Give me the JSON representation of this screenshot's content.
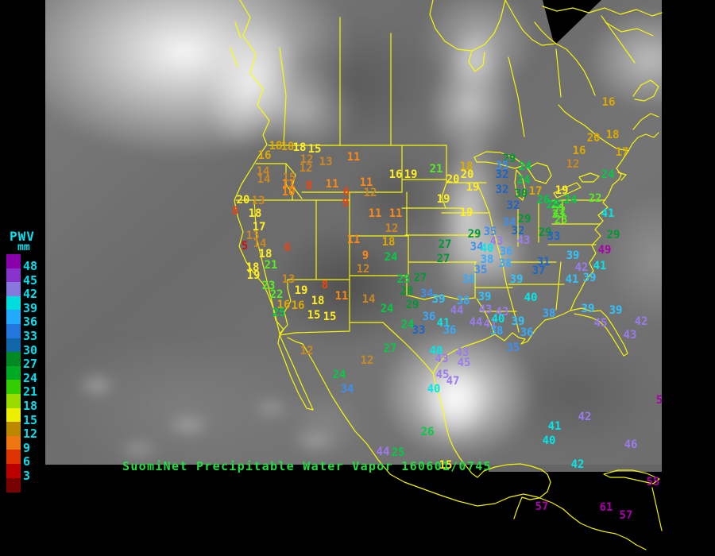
{
  "product": {
    "title": "SuomiNet Precipitable Water Vapor 160601/0745",
    "title_color": "#22dd44"
  },
  "legend": {
    "title": "PWV",
    "units": "mm",
    "label_color": "#00e0ee",
    "entries": [
      {
        "value": "48",
        "color": "#8800aa"
      },
      {
        "value": "45",
        "color": "#8833cc"
      },
      {
        "value": "42",
        "color": "#8877dd"
      },
      {
        "value": "39",
        "color": "#00dddd"
      },
      {
        "value": "36",
        "color": "#22aaff"
      },
      {
        "value": "33",
        "color": "#2277dd"
      },
      {
        "value": "30",
        "color": "#1166aa"
      },
      {
        "value": "27",
        "color": "#008822"
      },
      {
        "value": "24",
        "color": "#00aa22"
      },
      {
        "value": "21",
        "color": "#33cc00"
      },
      {
        "value": "18",
        "color": "#99dd00"
      },
      {
        "value": "15",
        "color": "#eeee00"
      },
      {
        "value": "12",
        "color": "#bb8800"
      },
      {
        "value": "9",
        "color": "#ee7711"
      },
      {
        "value": "6",
        "color": "#dd3300"
      },
      {
        "value": "3",
        "color": "#bb0000"
      }
    ],
    "extra_swatch_color": "#770000"
  },
  "map": {
    "outline_color": "#ffff00"
  },
  "stations_format": [
    "value",
    "x",
    "y",
    "color"
  ],
  "stations": [
    [
      "18",
      347,
      184,
      "#ddaa00"
    ],
    [
      "18",
      362,
      185,
      "#ddaa00"
    ],
    [
      "18",
      377,
      186,
      "#ffee22"
    ],
    [
      "15",
      396,
      188,
      "#ffee22"
    ],
    [
      "16",
      333,
      196,
      "#ddaa00"
    ],
    [
      "12",
      386,
      201,
      "#cc8822"
    ],
    [
      "12",
      385,
      212,
      "#cc8822"
    ],
    [
      "13",
      410,
      204,
      "#cc8822"
    ],
    [
      "11",
      445,
      198,
      "#ff8811"
    ],
    [
      "14",
      331,
      216,
      "#cc8822"
    ],
    [
      "15",
      364,
      224,
      "#cc8822"
    ],
    [
      "14",
      332,
      226,
      "#cc8822"
    ],
    [
      "11",
      363,
      232,
      "#ff8811"
    ],
    [
      "10",
      363,
      242,
      "#ff8811"
    ],
    [
      "8",
      389,
      234,
      "#ee4411"
    ],
    [
      "11",
      418,
      232,
      "#ff8811"
    ],
    [
      "11",
      461,
      230,
      "#ff8811"
    ],
    [
      "6",
      436,
      242,
      "#ee4411"
    ],
    [
      "9",
      435,
      256,
      "#ee4411"
    ],
    [
      "12",
      466,
      243,
      "#cc8822"
    ],
    [
      "16",
      498,
      220,
      "#ffee22"
    ],
    [
      "19",
      517,
      220,
      "#ffee22"
    ],
    [
      "11",
      472,
      269,
      "#ff8811"
    ],
    [
      "11",
      498,
      269,
      "#ff8811"
    ],
    [
      "12",
      493,
      288,
      "#cc8822"
    ],
    [
      "20",
      306,
      252,
      "#ffee22"
    ],
    [
      "13",
      325,
      253,
      "#cc8822"
    ],
    [
      "8",
      296,
      266,
      "#ee4411"
    ],
    [
      "18",
      321,
      269,
      "#ffee22"
    ],
    [
      "17",
      326,
      286,
      "#ffee22"
    ],
    [
      "13",
      318,
      297,
      "#cc8822"
    ],
    [
      "5",
      308,
      310,
      "#cc1111"
    ],
    [
      "14",
      327,
      307,
      "#cc8822"
    ],
    [
      "6",
      362,
      312,
      "#ee4411"
    ],
    [
      "18",
      334,
      320,
      "#ffee22"
    ],
    [
      "18",
      318,
      337,
      "#ffee22"
    ],
    [
      "21",
      341,
      334,
      "#55ee22"
    ],
    [
      "19",
      319,
      347,
      "#ffee22"
    ],
    [
      "13",
      363,
      352,
      "#cc8822"
    ],
    [
      "23",
      338,
      360,
      "#55ee22"
    ],
    [
      "8",
      409,
      359,
      "#ee4411"
    ],
    [
      "19",
      379,
      366,
      "#ffee22"
    ],
    [
      "22",
      348,
      371,
      "#55ee22"
    ],
    [
      "18",
      400,
      379,
      "#ffee22"
    ],
    [
      "11",
      430,
      373,
      "#ff8811"
    ],
    [
      "16",
      357,
      384,
      "#ddaa00"
    ],
    [
      "16",
      375,
      385,
      "#ddaa00"
    ],
    [
      "25",
      351,
      394,
      "#00cc44"
    ],
    [
      "15",
      395,
      397,
      "#ffee22"
    ],
    [
      "15",
      415,
      399,
      "#ffee22"
    ],
    [
      "14",
      464,
      377,
      "#cc8822"
    ],
    [
      "21",
      549,
      213,
      "#55ee22"
    ],
    [
      "18",
      587,
      210,
      "#ddaa00"
    ],
    [
      "20",
      570,
      226,
      "#ffee22"
    ],
    [
      "20",
      588,
      220,
      "#ffee22"
    ],
    [
      "19",
      595,
      236,
      "#ffee22"
    ],
    [
      "19",
      558,
      251,
      "#ffee22"
    ],
    [
      "19",
      587,
      268,
      "#ffee22"
    ],
    [
      "29",
      641,
      200,
      "#009933"
    ],
    [
      "24",
      661,
      210,
      "#00cc44"
    ],
    [
      "35",
      632,
      209,
      "#3f8fee"
    ],
    [
      "32",
      632,
      220,
      "#1a66cc"
    ],
    [
      "24",
      659,
      227,
      "#00cc44"
    ],
    [
      "32",
      632,
      239,
      "#1a66cc"
    ],
    [
      "30",
      656,
      244,
      "#009933"
    ],
    [
      "17",
      674,
      241,
      "#ddaa00"
    ],
    [
      "26",
      684,
      252,
      "#00cc44"
    ],
    [
      "22",
      702,
      258,
      "#55ee22"
    ],
    [
      "23",
      703,
      270,
      "#55ee22"
    ],
    [
      "32",
      646,
      259,
      "#1a66cc"
    ],
    [
      "34",
      641,
      280,
      "#3f8fee"
    ],
    [
      "29",
      660,
      276,
      "#009933"
    ],
    [
      "32",
      652,
      291,
      "#1a66cc"
    ],
    [
      "29",
      686,
      293,
      "#009933"
    ],
    [
      "33",
      697,
      298,
      "#1a66cc"
    ],
    [
      "43",
      659,
      303,
      "#9b7bee"
    ],
    [
      "43",
      625,
      304,
      "#9b7bee"
    ],
    [
      "16",
      766,
      129,
      "#ddaa00"
    ],
    [
      "20",
      747,
      174,
      "#ddaa00"
    ],
    [
      "18",
      771,
      170,
      "#ddaa00"
    ],
    [
      "16",
      729,
      190,
      "#ddaa00"
    ],
    [
      "12",
      721,
      207,
      "#cc8822"
    ],
    [
      "17",
      783,
      192,
      "#ddaa00"
    ],
    [
      "24",
      765,
      220,
      "#00cc44"
    ],
    [
      "22",
      749,
      250,
      "#55ee22"
    ],
    [
      "41",
      765,
      269,
      "#00e8e8"
    ],
    [
      "19",
      707,
      240,
      "#ffee22"
    ],
    [
      "26",
      696,
      258,
      "#00cc44"
    ],
    [
      "24",
      718,
      252,
      "#00cc44"
    ],
    [
      "22",
      704,
      266,
      "#55ee22"
    ],
    [
      "23",
      706,
      277,
      "#55ee22"
    ],
    [
      "29",
      772,
      296,
      "#009933"
    ],
    [
      "27",
      560,
      308,
      "#009933"
    ],
    [
      "27",
      558,
      326,
      "#009933"
    ],
    [
      "29",
      597,
      295,
      "#009933"
    ],
    [
      "35",
      617,
      292,
      "#3f8fee"
    ],
    [
      "34",
      600,
      311,
      "#3f8fee"
    ],
    [
      "40",
      613,
      313,
      "#00e8e8"
    ],
    [
      "36",
      637,
      317,
      "#35aaff"
    ],
    [
      "38",
      613,
      327,
      "#35aaff"
    ],
    [
      "38",
      636,
      332,
      "#35aaff"
    ],
    [
      "35",
      605,
      340,
      "#3f8fee"
    ],
    [
      "38",
      590,
      352,
      "#35aaff"
    ],
    [
      "31",
      684,
      330,
      "#1a66cc"
    ],
    [
      "37",
      678,
      341,
      "#1a66cc"
    ],
    [
      "39",
      650,
      352,
      "#30c4ff"
    ],
    [
      "11",
      445,
      302,
      "#ff8811"
    ],
    [
      "18",
      489,
      305,
      "#ddaa00"
    ],
    [
      "9",
      460,
      322,
      "#ff8811"
    ],
    [
      "24",
      492,
      324,
      "#00cc44"
    ],
    [
      "12",
      457,
      339,
      "#cc8822"
    ],
    [
      "25",
      508,
      352,
      "#00cc44"
    ],
    [
      "27",
      529,
      350,
      "#009933"
    ],
    [
      "28",
      512,
      367,
      "#009933"
    ],
    [
      "34",
      537,
      370,
      "#3f8fee"
    ],
    [
      "29",
      519,
      384,
      "#009933"
    ],
    [
      "24",
      487,
      389,
      "#00cc44"
    ],
    [
      "39",
      552,
      377,
      "#30c4ff"
    ],
    [
      "38",
      583,
      379,
      "#35aaff"
    ],
    [
      "39",
      610,
      374,
      "#30c4ff"
    ],
    [
      "36",
      540,
      399,
      "#35aaff"
    ],
    [
      "41",
      558,
      407,
      "#00e8e8"
    ],
    [
      "24",
      513,
      409,
      "#00cc44"
    ],
    [
      "33",
      527,
      416,
      "#1a66cc"
    ],
    [
      "36",
      566,
      416,
      "#35aaff"
    ],
    [
      "44",
      575,
      391,
      "#9b7bee"
    ],
    [
      "43",
      611,
      390,
      "#9b7bee"
    ],
    [
      "43",
      632,
      393,
      "#9b7bee"
    ],
    [
      "44",
      599,
      406,
      "#9b7bee"
    ],
    [
      "41",
      617,
      408,
      "#9b7bee"
    ],
    [
      "40",
      627,
      402,
      "#00e8e8"
    ],
    [
      "39",
      652,
      405,
      "#30c4ff"
    ],
    [
      "38",
      691,
      395,
      "#35aaff"
    ],
    [
      "38",
      625,
      417,
      "#35aaff"
    ],
    [
      "36",
      663,
      419,
      "#35aaff"
    ],
    [
      "35",
      646,
      438,
      "#3f8fee"
    ],
    [
      "40",
      668,
      375,
      "#00e8e8"
    ],
    [
      "27",
      491,
      439,
      "#00cc44"
    ],
    [
      "12",
      462,
      454,
      "#cc8822"
    ],
    [
      "12",
      386,
      442,
      "#cc8822"
    ],
    [
      "24",
      427,
      472,
      "#00cc44"
    ],
    [
      "34",
      437,
      490,
      "#3f8fee"
    ],
    [
      "40",
      549,
      442,
      "#00e8e8"
    ],
    [
      "43",
      582,
      444,
      "#9b7bee"
    ],
    [
      "43",
      556,
      452,
      "#9b7bee"
    ],
    [
      "45",
      584,
      457,
      "#9b7bee"
    ],
    [
      "45",
      557,
      472,
      "#9b7bee"
    ],
    [
      "47",
      570,
      480,
      "#9b7bee"
    ],
    [
      "40",
      546,
      490,
      "#00e8e8"
    ],
    [
      "26",
      538,
      544,
      "#00cc44"
    ],
    [
      "44",
      482,
      569,
      "#9b7bee"
    ],
    [
      "25",
      501,
      570,
      "#00cc44"
    ],
    [
      "15",
      561,
      586,
      "#ffee22"
    ],
    [
      "5",
      830,
      504,
      "#aa00aa"
    ],
    [
      "49",
      761,
      315,
      "#aa00aa"
    ],
    [
      "39",
      721,
      322,
      "#30c4ff"
    ],
    [
      "42",
      732,
      337,
      "#9b7bee"
    ],
    [
      "41",
      755,
      335,
      "#00e8e8"
    ],
    [
      "41",
      720,
      352,
      "#30c4ff"
    ],
    [
      "39",
      742,
      350,
      "#30c4ff"
    ],
    [
      "39",
      740,
      389,
      "#30c4ff"
    ],
    [
      "39",
      775,
      391,
      "#30c4ff"
    ],
    [
      "45",
      756,
      407,
      "#9b7bee"
    ],
    [
      "42",
      807,
      405,
      "#9b7bee"
    ],
    [
      "43",
      793,
      422,
      "#9b7bee"
    ],
    [
      "42",
      736,
      525,
      "#9b7bee"
    ],
    [
      "41",
      698,
      537,
      "#00e8e8"
    ],
    [
      "40",
      691,
      555,
      "#00e8e8"
    ],
    [
      "46",
      794,
      560,
      "#9b7bee"
    ],
    [
      "42",
      727,
      585,
      "#00e8e8"
    ],
    [
      "55",
      822,
      607,
      "#aa00aa"
    ],
    [
      "57",
      682,
      638,
      "#aa00aa"
    ],
    [
      "61",
      763,
      639,
      "#aa00aa"
    ],
    [
      "57",
      788,
      649,
      "#aa00aa"
    ]
  ]
}
